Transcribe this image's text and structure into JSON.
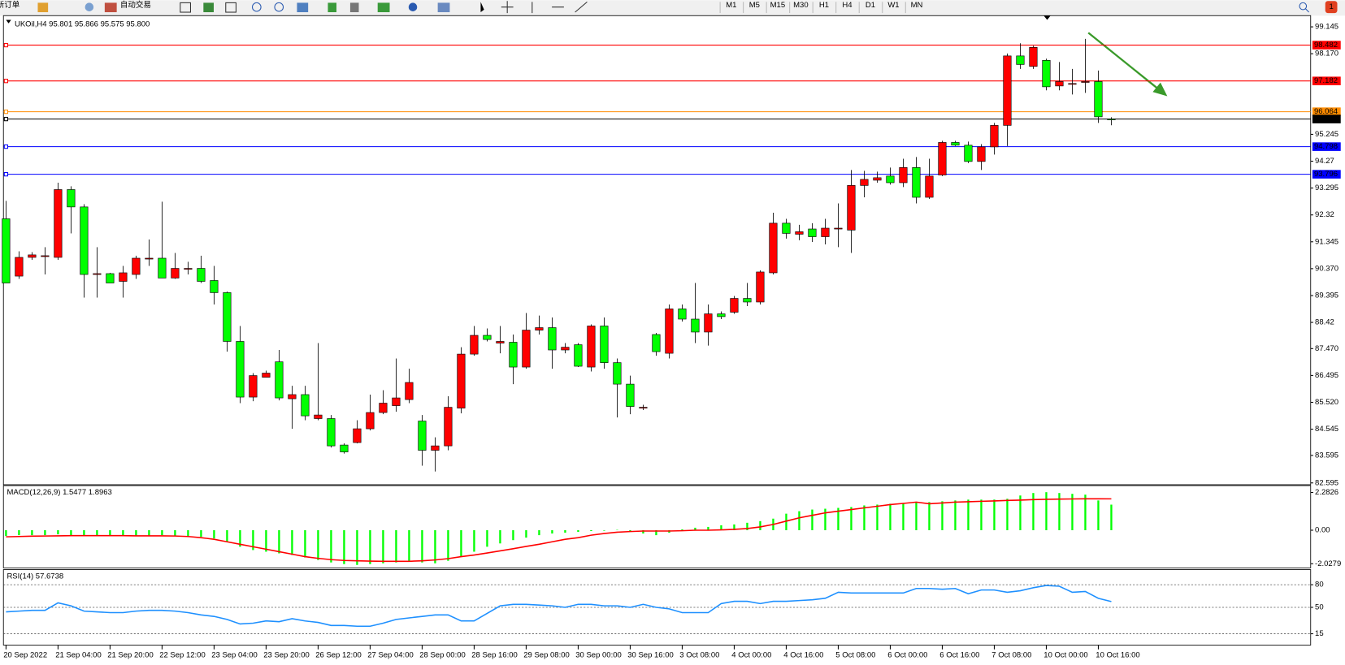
{
  "toolbar": {
    "items": [
      "新订单",
      "自动交易"
    ],
    "timeframes": [
      "M1",
      "M5",
      "M15",
      "M30",
      "H1",
      "H4",
      "D1",
      "W1",
      "MN"
    ],
    "badge": 1
  },
  "chart_data": [
    {
      "type": "candlestick",
      "title": "UKOil,H4 95.801 95.866 95.575 95.800",
      "up_color": "#ff0000",
      "down_color": "#00ff00",
      "categories": [
        "20 Sep 2022",
        null,
        null,
        null,
        "21 Sep 04:00",
        null,
        null,
        null,
        "21 Sep 20:00",
        null,
        null,
        null,
        "22 Sep 12:00",
        null,
        null,
        null,
        "23 Sep 04:00",
        null,
        null,
        null,
        "23 Sep 20:00",
        null,
        null,
        null,
        "26 Sep 12:00",
        null,
        null,
        null,
        "27 Sep 04:00",
        null,
        null,
        null,
        "28 Sep 00:00",
        null,
        null,
        null,
        "28 Sep 16:00",
        null,
        null,
        null,
        "29 Sep 08:00",
        null,
        null,
        null,
        "30 Sep 00:00",
        null,
        null,
        null,
        "30 Sep 16:00",
        null,
        null,
        null,
        "3 Oct 08:00",
        null,
        null,
        null,
        "4 Oct 00:00",
        null,
        null,
        null,
        "4 Oct 16:00",
        null,
        null,
        null,
        "5 Oct 08:00",
        null,
        null,
        null,
        "6 Oct 00:00",
        null,
        null,
        null,
        "6 Oct 16:00",
        null,
        null,
        null,
        "7 Oct 08:00",
        null,
        null,
        null,
        "10 Oct 00:00",
        null,
        null,
        null,
        "10 Oct 16:00",
        null
      ],
      "open": [
        92.18,
        90.1,
        90.78,
        90.84,
        90.78,
        93.24,
        92.61,
        90.19,
        90.19,
        89.91,
        90.16,
        90.75,
        90.75,
        90.03,
        90.38,
        90.38,
        89.94,
        89.5,
        87.73,
        85.71,
        86.43,
        86.99,
        85.65,
        85.8,
        84.93,
        84.93,
        83.97,
        84.06,
        84.56,
        85.15,
        85.4,
        85.62,
        84.84,
        83.78,
        83.94,
        85.31,
        87.27,
        87.95,
        87.67,
        87.7,
        86.8,
        88.14,
        88.23,
        87.42,
        87.61,
        86.8,
        88.29,
        86.96,
        86.18,
        85.34,
        87.98,
        87.3,
        88.91,
        88.54,
        88.07,
        88.73,
        88.79,
        89.29,
        89.16,
        90.22,
        92.02,
        91.62,
        91.81,
        91.53,
        91.84,
        91.77,
        93.39,
        93.58,
        93.73,
        93.49,
        94.04,
        92.96,
        93.77,
        94.95,
        94.85,
        94.26,
        94.79,
        95.57,
        98.09,
        97.71,
        97.93,
        97.0,
        97.09,
        97.13,
        97.16,
        95.801
      ],
      "high": [
        92.83,
        91.0,
        90.97,
        91.15,
        93.49,
        93.36,
        92.71,
        91.15,
        90.22,
        90.47,
        90.84,
        91.43,
        92.8,
        90.94,
        90.62,
        90.84,
        90.47,
        89.54,
        88.29,
        86.58,
        86.67,
        87.42,
        86.12,
        86.12,
        87.67,
        85.06,
        84.03,
        84.87,
        85.8,
        85.96,
        87.11,
        86.74,
        85.06,
        84.25,
        85.74,
        87.52,
        88.29,
        88.2,
        88.29,
        87.98,
        88.76,
        88.67,
        88.6,
        87.67,
        87.67,
        88.35,
        88.6,
        87.11,
        86.49,
        85.43,
        88.04,
        89.07,
        89.07,
        89.85,
        89.07,
        88.82,
        89.38,
        89.85,
        90.31,
        92.4,
        92.18,
        91.96,
        92.02,
        92.18,
        92.74,
        93.95,
        93.92,
        93.89,
        94.04,
        94.36,
        94.42,
        94.36,
        95.01,
        95.01,
        94.98,
        94.89,
        95.66,
        98.18,
        98.55,
        98.46,
        97.99,
        97.87,
        97.62,
        98.71,
        97.56,
        95.866
      ],
      "low": [
        89.85,
        90.0,
        90.69,
        90.16,
        90.69,
        91.65,
        89.32,
        89.32,
        89.85,
        89.32,
        90.0,
        90.47,
        90.03,
        90.0,
        90.16,
        89.85,
        89.07,
        87.36,
        85.49,
        85.56,
        86.43,
        85.59,
        84.56,
        84.87,
        84.87,
        83.88,
        83.66,
        84.03,
        84.5,
        85.09,
        85.18,
        85.49,
        83.22,
        83.01,
        83.78,
        85.12,
        87.21,
        87.73,
        87.3,
        86.18,
        86.74,
        87.98,
        86.74,
        87.3,
        86.8,
        86.64,
        86.74,
        84.97,
        85.09,
        85.24,
        87.21,
        87.11,
        88.45,
        87.67,
        87.58,
        88.54,
        88.73,
        89.01,
        89.07,
        90.16,
        91.46,
        91.4,
        91.34,
        91.25,
        91.15,
        90.94,
        92.96,
        93.49,
        93.42,
        93.33,
        92.74,
        92.9,
        93.73,
        94.82,
        94.2,
        93.95,
        94.51,
        94.82,
        97.62,
        97.62,
        96.84,
        96.84,
        96.69,
        96.75,
        95.66,
        95.575
      ],
      "close": [
        89.85,
        90.78,
        90.87,
        90.84,
        93.24,
        92.61,
        90.16,
        90.19,
        89.85,
        90.22,
        90.75,
        90.75,
        90.03,
        90.38,
        90.38,
        89.91,
        89.5,
        87.73,
        85.71,
        86.49,
        86.58,
        85.68,
        85.8,
        85.03,
        85.06,
        83.94,
        83.72,
        84.56,
        85.15,
        85.49,
        85.68,
        86.24,
        83.78,
        83.94,
        85.34,
        87.27,
        87.95,
        87.8,
        87.73,
        86.8,
        88.14,
        88.23,
        87.42,
        87.52,
        86.83,
        88.29,
        86.96,
        86.18,
        85.37,
        85.34,
        87.36,
        88.91,
        88.54,
        88.07,
        88.73,
        88.63,
        89.29,
        89.16,
        90.25,
        92.02,
        91.65,
        91.71,
        91.53,
        91.84,
        91.84,
        93.39,
        93.61,
        93.67,
        93.49,
        94.04,
        92.96,
        93.73,
        94.95,
        94.85,
        94.26,
        94.79,
        95.57,
        98.09,
        97.78,
        98.4,
        96.97,
        97.16,
        97.09,
        97.16,
        95.88,
        95.8
      ],
      "levels": [
        {
          "value": 98.482,
          "color": "#ff0000"
        },
        {
          "value": 97.182,
          "color": "#ff0000"
        },
        {
          "value": 96.064,
          "color": "#ff8c00"
        },
        {
          "value": 95.8,
          "label": "95.800",
          "color": "#000000"
        },
        {
          "value": 94.798,
          "color": "#0000ff"
        },
        {
          "value": 93.796,
          "color": "#0000ff"
        }
      ],
      "ylim": [
        82.53,
        99.49
      ],
      "yticks": [
        99.145,
        {
          "value": 98.17,
          "label": "98.170"
        },
        95.245,
        94.27,
        93.295,
        92.32,
        91.345,
        {
          "value": 90.37,
          "label": "90.370"
        },
        89.395,
        88.42,
        {
          "value": 87.47,
          "label": "87.470"
        },
        86.495,
        {
          "value": 85.52,
          "label": "85.520"
        },
        84.545,
        83.595,
        82.595
      ]
    },
    {
      "type": "combo",
      "title": "MACD(12,26,9) 1.5477 1.8963",
      "ylim": [
        -2.28,
        2.7
      ],
      "yticks": [
        2.2826,
        {
          "value": 0,
          "label": "0.00"
        },
        -2.0279
      ],
      "series": [
        {
          "type": "bar",
          "color": "#00ff00",
          "values": [
            -0.35,
            -0.3,
            -0.3,
            -0.3,
            -0.25,
            -0.3,
            -0.35,
            -0.35,
            -0.3,
            -0.35,
            -0.35,
            -0.35,
            -0.3,
            -0.35,
            -0.35,
            -0.4,
            -0.5,
            -0.7,
            -1.0,
            -1.2,
            -1.3,
            -1.4,
            -1.5,
            -1.65,
            -1.8,
            -1.95,
            -2.05,
            -2.1,
            -2.05,
            -2.0,
            -1.95,
            -1.9,
            -1.95,
            -2.0,
            -1.85,
            -1.6,
            -1.3,
            -1.0,
            -0.8,
            -0.6,
            -0.45,
            -0.3,
            -0.2,
            -0.15,
            -0.1,
            -0.05,
            -0.03,
            0.02,
            -0.05,
            -0.2,
            -0.3,
            -0.15,
            0.05,
            0.15,
            0.2,
            0.3,
            0.35,
            0.45,
            0.55,
            0.7,
            1.0,
            1.15,
            1.25,
            1.3,
            1.35,
            1.4,
            1.5,
            1.55,
            1.6,
            1.65,
            1.7,
            1.7,
            1.75,
            1.8,
            1.85,
            1.85,
            1.85,
            1.9,
            2.1,
            2.25,
            2.3,
            2.25,
            2.2,
            2.15,
            1.8,
            1.5477
          ]
        },
        {
          "type": "line",
          "color": "#ff0000",
          "values": [
            -0.4,
            -0.38,
            -0.36,
            -0.35,
            -0.34,
            -0.33,
            -0.33,
            -0.33,
            -0.33,
            -0.33,
            -0.34,
            -0.34,
            -0.34,
            -0.35,
            -0.38,
            -0.45,
            -0.55,
            -0.7,
            -0.85,
            -1.0,
            -1.15,
            -1.3,
            -1.45,
            -1.6,
            -1.7,
            -1.78,
            -1.83,
            -1.85,
            -1.87,
            -1.88,
            -1.88,
            -1.88,
            -1.85,
            -1.8,
            -1.72,
            -1.6,
            -1.5,
            -1.38,
            -1.25,
            -1.12,
            -0.98,
            -0.85,
            -0.7,
            -0.55,
            -0.45,
            -0.3,
            -0.2,
            -0.12,
            -0.08,
            -0.05,
            -0.05,
            -0.05,
            -0.03,
            0.0,
            0.0,
            0.02,
            0.05,
            0.1,
            0.2,
            0.35,
            0.55,
            0.75,
            0.9,
            1.05,
            1.15,
            1.25,
            1.35,
            1.45,
            1.55,
            1.62,
            1.7,
            1.6,
            1.65,
            1.7,
            1.72,
            1.75,
            1.77,
            1.8,
            1.82,
            1.85,
            1.87,
            1.88,
            1.89,
            1.9,
            1.9,
            1.8963
          ]
        }
      ]
    },
    {
      "type": "line",
      "title": "RSI(14) 57.6738",
      "ylim": [
        0,
        100
      ],
      "yticks": [
        80,
        50,
        15
      ],
      "color": "#1e90ff",
      "values": [
        44,
        45,
        46,
        46,
        56,
        52,
        45,
        44,
        43,
        43,
        45,
        46,
        46,
        45,
        43,
        40,
        38,
        34,
        28,
        29,
        32,
        31,
        35,
        32,
        30,
        26,
        26,
        25,
        25,
        29,
        34,
        36,
        38,
        40,
        40,
        32,
        32,
        42,
        52,
        54,
        54,
        53,
        52,
        50,
        54,
        54,
        52,
        52,
        50,
        54,
        50,
        48,
        43,
        43,
        43,
        55,
        58,
        58,
        55,
        58,
        58,
        59,
        60,
        62,
        70,
        69,
        69,
        69,
        69,
        69,
        75,
        75,
        74,
        75,
        68,
        73,
        73,
        70,
        72,
        76,
        79,
        78,
        70,
        71,
        62,
        57.6738
      ]
    }
  ]
}
